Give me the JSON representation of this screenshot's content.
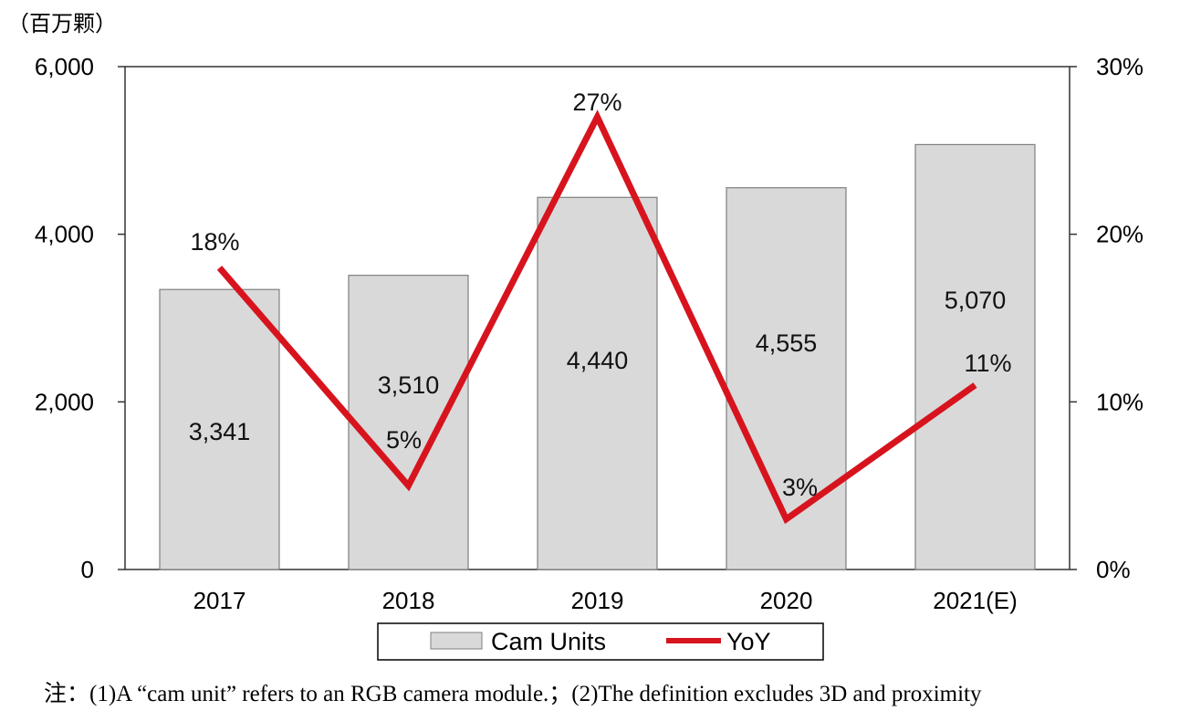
{
  "chart_data": {
    "type": "bar",
    "unit_label": "（百万颗）",
    "categories": [
      "2017",
      "2018",
      "2019",
      "2020",
      "2021(E)"
    ],
    "series": [
      {
        "name": "Cam Units",
        "type": "bar",
        "axis": "left",
        "values": [
          3341,
          3510,
          4440,
          4555,
          5070
        ],
        "labels": [
          "3,341",
          "3,510",
          "4,440",
          "4,555",
          "5,070"
        ]
      },
      {
        "name": "YoY",
        "type": "line",
        "axis": "right",
        "values": [
          18,
          5,
          27,
          3,
          11
        ],
        "labels": [
          "18%",
          "5%",
          "27%",
          "3%",
          "11%"
        ]
      }
    ],
    "y_left": {
      "range": [
        0,
        6000
      ],
      "ticks": [
        0,
        2000,
        4000,
        6000
      ],
      "tick_labels": [
        "0",
        "2,000",
        "4,000",
        "6,000"
      ]
    },
    "y_right": {
      "range": [
        0,
        30
      ],
      "ticks": [
        0,
        10,
        20,
        30
      ],
      "tick_labels": [
        "0%",
        "10%",
        "20%",
        "30%"
      ]
    },
    "legend": {
      "position": "bottom",
      "items": [
        "Cam Units",
        "YoY"
      ]
    },
    "colors": {
      "bar_fill": "#d9d9d9",
      "bar_stroke": "#7f7f7f",
      "line": "#d7141e",
      "axis": "#333333"
    }
  },
  "note": "注：(1)A “cam unit” refers to an RGB camera module.；(2)The definition excludes 3D and proximity"
}
